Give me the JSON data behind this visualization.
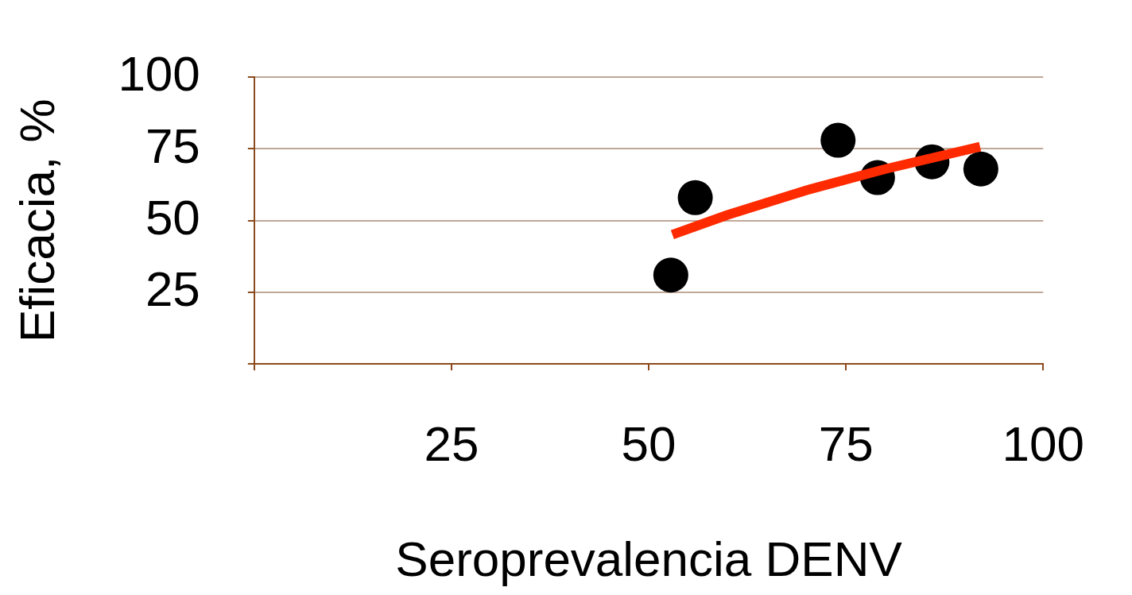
{
  "chart_data": {
    "type": "scatter",
    "xlabel": "Seroprevalencia DENV",
    "ylabel": "Eficacia, %",
    "xlim": [
      0,
      100
    ],
    "ylim": [
      0,
      100
    ],
    "xticks": [
      {
        "value": 0,
        "label": null
      },
      25,
      50,
      75,
      100
    ],
    "yticks": [
      {
        "value": 0,
        "label": null
      },
      25,
      50,
      75,
      100
    ],
    "grid": "y",
    "marker": "circle",
    "series": [
      {
        "color": "#000000",
        "x": [
          52.8,
          55.9,
          74.0,
          79.0,
          85.9,
          92.1
        ],
        "values": [
          31,
          58,
          78,
          65,
          70.5,
          68
        ]
      },
      {
        "type": "line",
        "color": "#ff2a00",
        "marker": "none",
        "x": [
          53,
          60,
          70,
          80,
          92
        ],
        "values": [
          45.1,
          52,
          60.6,
          68,
          75.8
        ]
      }
    ]
  }
}
